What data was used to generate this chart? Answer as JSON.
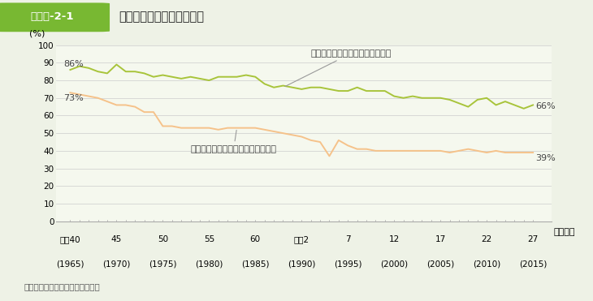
{
  "title_box": "図表１-2-1",
  "title_main": "我が国の食料自給率の推移",
  "source": "資料：農林水産省「食料需給表」",
  "ylabel": "(%)",
  "xlabel_right": "（年度）",
  "ylim": [
    0,
    100
  ],
  "yticks": [
    0,
    10,
    20,
    30,
    40,
    50,
    60,
    70,
    80,
    90,
    100
  ],
  "xtick_labels_top": [
    "昭和40",
    "45",
    "50",
    "55",
    "60",
    "平成2",
    "7",
    "12",
    "17",
    "22",
    "27"
  ],
  "xtick_labels_bottom": [
    "(1965)",
    "(1970)",
    "(1975)",
    "(1980)",
    "(1985)",
    "(1990)",
    "(1995)",
    "(2000)",
    "(2005)",
    "(2010)",
    "(2015)"
  ],
  "xtick_positions": [
    1965,
    1970,
    1975,
    1980,
    1985,
    1990,
    1995,
    2000,
    2005,
    2010,
    2015
  ],
  "production_label": "総合食料自給率（生産額ベース）",
  "calorie_label": "総合食料自給率（カロリーベース）",
  "production_color": "#a8c43a",
  "calorie_color": "#f5c28a",
  "production_start_label": "86%",
  "production_end_label": "66%",
  "calorie_start_label": "73%",
  "calorie_end_label": "39%",
  "bg_outer": "#eef2e6",
  "bg_inner": "#f5f8ee",
  "title_bg": "#78b832",
  "years": [
    1965,
    1966,
    1967,
    1968,
    1969,
    1970,
    1971,
    1972,
    1973,
    1974,
    1975,
    1976,
    1977,
    1978,
    1979,
    1980,
    1981,
    1982,
    1983,
    1984,
    1985,
    1986,
    1987,
    1988,
    1989,
    1990,
    1991,
    1992,
    1993,
    1994,
    1995,
    1996,
    1997,
    1998,
    1999,
    2000,
    2001,
    2002,
    2003,
    2004,
    2005,
    2006,
    2007,
    2008,
    2009,
    2010,
    2011,
    2012,
    2013,
    2014,
    2015
  ],
  "production": [
    86,
    88,
    87,
    85,
    84,
    89,
    85,
    85,
    84,
    82,
    83,
    82,
    81,
    82,
    81,
    80,
    82,
    82,
    82,
    83,
    82,
    78,
    76,
    77,
    76,
    75,
    76,
    76,
    75,
    74,
    74,
    76,
    74,
    74,
    74,
    71,
    70,
    71,
    70,
    70,
    70,
    69,
    67,
    65,
    69,
    70,
    66,
    68,
    66,
    64,
    66
  ],
  "calorie": [
    73,
    72,
    71,
    70,
    68,
    66,
    66,
    65,
    62,
    62,
    54,
    54,
    53,
    53,
    53,
    53,
    52,
    53,
    53,
    53,
    53,
    52,
    51,
    50,
    49,
    48,
    46,
    45,
    37,
    46,
    43,
    41,
    41,
    40,
    40,
    40,
    40,
    40,
    40,
    40,
    40,
    39,
    40,
    41,
    40,
    39,
    40,
    39,
    39,
    39,
    39
  ]
}
